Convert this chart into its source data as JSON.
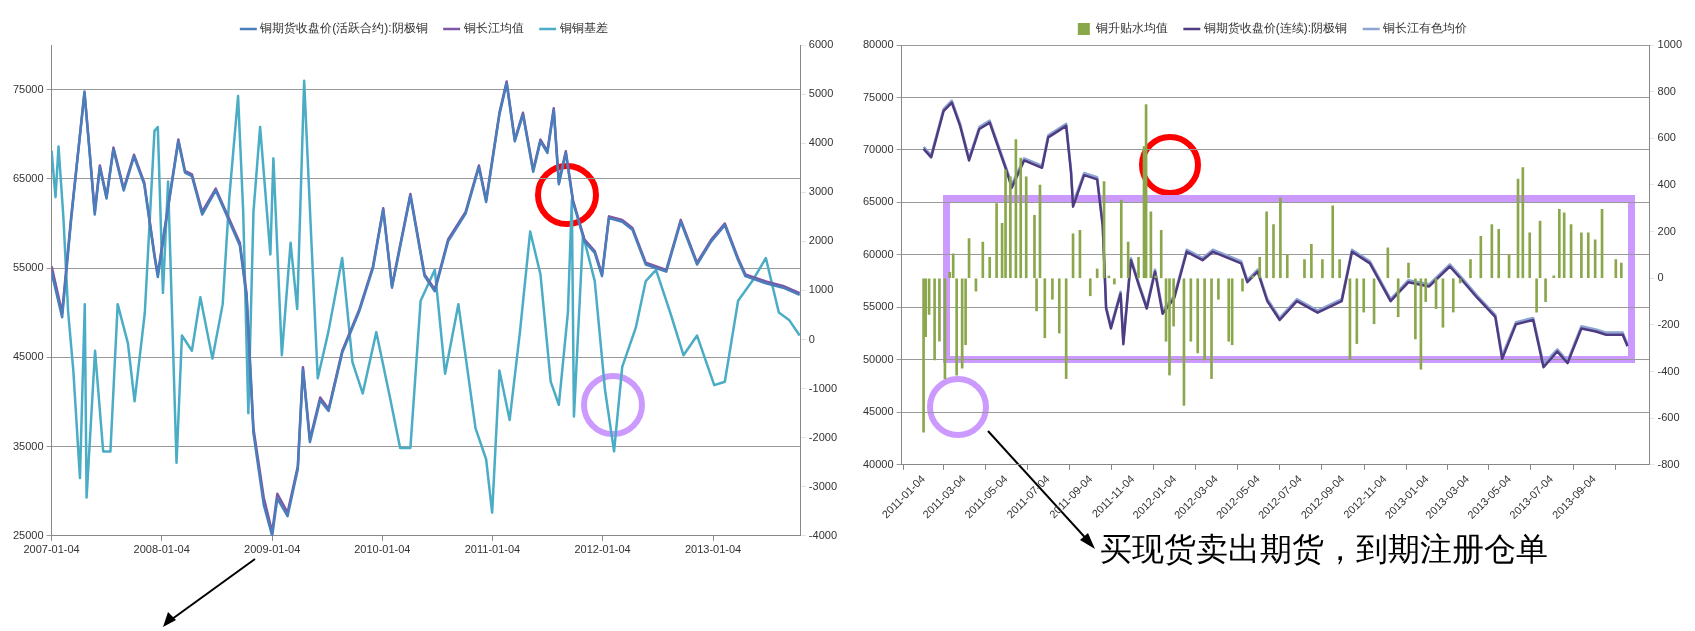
{
  "chart_data": [
    {
      "type": "line",
      "legend": "top",
      "grid": "y",
      "xlim": [
        "2007-01-04",
        "2013-10-22"
      ],
      "xticks": [
        "2007-01-04",
        "2008-01-04",
        "2009-01-04",
        "2010-01-04",
        "2011-01-04",
        "2012-01-04",
        "2013-01-04"
      ],
      "ylim": [
        25000,
        80000
      ],
      "yticks": [
        25000,
        35000,
        45000,
        55000,
        65000,
        75000
      ],
      "y2lim": [
        -4000,
        6000
      ],
      "y2ticks": [
        -4000,
        -3000,
        -2000,
        -1000,
        0,
        1000,
        2000,
        3000,
        4000,
        5000,
        6000
      ],
      "series": [
        {
          "name": "铜期货收盘价(活跃合约):阴极铜",
          "color": "#4a7ebb",
          "x": [
            "2007-01-04",
            "2007-02-08",
            "2007-03-10",
            "2007-04-23",
            "2007-05-10",
            "2007-05-27",
            "2007-06-13",
            "2007-07-05",
            "2007-07-28",
            "2007-08-31",
            "2007-10-04",
            "2007-11-07",
            "2007-12-11",
            "2007-12-22",
            "2008-01-14",
            "2008-02-28",
            "2008-03-21",
            "2008-04-13",
            "2008-05-17",
            "2008-07-01",
            "2008-08-04",
            "2008-09-19",
            "2008-10-11",
            "2008-11-03",
            "2008-12-07",
            "2009-01-04",
            "2009-01-21",
            "2009-02-24",
            "2009-03-30",
            "2009-04-16",
            "2009-05-09",
            "2009-06-12",
            "2009-07-10",
            "2009-08-24",
            "2009-10-20",
            "2009-12-04",
            "2010-01-07",
            "2010-02-05",
            "2010-04-07",
            "2010-05-24",
            "2010-06-27",
            "2010-08-10",
            "2010-10-07",
            "2010-11-20",
            "2010-12-14",
            "2011-01-27",
            "2011-02-20",
            "2011-03-19",
            "2011-04-15",
            "2011-05-19",
            "2011-06-12",
            "2011-07-05",
            "2011-07-26",
            "2011-08-12",
            "2011-09-04",
            "2011-09-28",
            "2011-11-05",
            "2011-12-09",
            "2012-01-02",
            "2012-01-25",
            "2012-03-09",
            "2012-04-12",
            "2012-05-26",
            "2012-08-02",
            "2012-09-19",
            "2012-11-12",
            "2012-12-29",
            "2013-02-12",
            "2013-03-28",
            "2013-04-21",
            "2013-06-28",
            "2013-08-24",
            "2013-10-18"
          ],
          "values": [
            54500,
            49500,
            60500,
            74800,
            68000,
            61000,
            66300,
            62800,
            68300,
            63700,
            67500,
            64400,
            56300,
            54000,
            59300,
            69200,
            65700,
            65300,
            61000,
            63700,
            61100,
            57500,
            51800,
            36500,
            28500,
            25000,
            29200,
            27200,
            32500,
            43600,
            35500,
            40200,
            39000,
            45500,
            50200,
            55000,
            61500,
            52800,
            63100,
            54100,
            52400,
            58000,
            61100,
            66300,
            62400,
            72200,
            75700,
            69200,
            72200,
            65800,
            69200,
            67900,
            72700,
            64400,
            67900,
            62400,
            58000,
            56700,
            54100,
            60600,
            60200,
            59300,
            55400,
            54600,
            60200,
            55400,
            58000,
            59800,
            55900,
            54100,
            53300,
            52800,
            52000
          ]
        },
        {
          "name": "铜长江均值",
          "color": "#7e57a5",
          "x": [
            "2007-01-04",
            "2007-02-08",
            "2007-03-10",
            "2007-04-23",
            "2007-05-10",
            "2007-05-27",
            "2007-06-13",
            "2007-07-05",
            "2007-07-28",
            "2007-08-31",
            "2007-10-04",
            "2007-11-07",
            "2007-12-11",
            "2007-12-22",
            "2008-01-14",
            "2008-02-28",
            "2008-03-21",
            "2008-04-13",
            "2008-05-17",
            "2008-07-01",
            "2008-08-04",
            "2008-09-19",
            "2008-10-11",
            "2008-11-03",
            "2008-12-07",
            "2009-01-04",
            "2009-01-21",
            "2009-02-24",
            "2009-03-30",
            "2009-04-16",
            "2009-05-09",
            "2009-06-12",
            "2009-07-10",
            "2009-08-24",
            "2009-10-20",
            "2009-12-04",
            "2010-01-07",
            "2010-02-05",
            "2010-04-07",
            "2010-05-24",
            "2010-06-27",
            "2010-08-10",
            "2010-10-07",
            "2010-11-20",
            "2010-12-14",
            "2011-01-27",
            "2011-02-20",
            "2011-03-19",
            "2011-04-15",
            "2011-05-19",
            "2011-06-12",
            "2011-07-05",
            "2011-07-26",
            "2011-08-12",
            "2011-09-04",
            "2011-09-28",
            "2011-11-05",
            "2011-12-09",
            "2012-01-02",
            "2012-01-25",
            "2012-03-09",
            "2012-04-12",
            "2012-05-26",
            "2012-08-02",
            "2012-09-19",
            "2012-11-12",
            "2012-12-29",
            "2013-02-12",
            "2013-03-28",
            "2013-04-21",
            "2013-06-28",
            "2013-08-24",
            "2013-10-18"
          ],
          "values": [
            55200,
            50000,
            60800,
            74600,
            68100,
            61300,
            66500,
            63000,
            68500,
            63900,
            67700,
            64600,
            56500,
            54300,
            59500,
            69400,
            65900,
            65500,
            61300,
            63900,
            61300,
            57800,
            52200,
            37000,
            29300,
            25400,
            29700,
            27600,
            32800,
            43900,
            35800,
            40500,
            39200,
            45700,
            50400,
            55200,
            61700,
            53000,
            63300,
            54300,
            52600,
            58200,
            61300,
            66500,
            62600,
            72400,
            75900,
            69400,
            72400,
            66000,
            69400,
            68100,
            72900,
            64600,
            68100,
            62600,
            58200,
            56900,
            54300,
            60800,
            60400,
            59500,
            55600,
            54800,
            60400,
            55600,
            58200,
            60000,
            56100,
            54300,
            53500,
            53000,
            52200
          ]
        },
        {
          "name": "铜铜基差",
          "color": "#4bacc6",
          "axis": "y2",
          "x": [
            "2007-01-04",
            "2007-01-17",
            "2007-01-27",
            "2007-02-12",
            "2007-02-28",
            "2007-03-17",
            "2007-04-08",
            "2007-04-24",
            "2007-04-30",
            "2007-05-28",
            "2007-06-24",
            "2007-07-18",
            "2007-08-11",
            "2007-09-14",
            "2007-10-06",
            "2007-11-09",
            "2007-12-11",
            "2007-12-22",
            "2008-01-08",
            "2008-01-25",
            "2008-02-22",
            "2008-03-11",
            "2008-04-13",
            "2008-05-11",
            "2008-06-20",
            "2008-07-24",
            "2008-08-15",
            "2008-09-13",
            "2008-09-30",
            "2008-10-17",
            "2008-11-03",
            "2008-11-25",
            "2008-12-29",
            "2009-01-08",
            "2009-02-05",
            "2009-03-06",
            "2009-03-28",
            "2009-04-20",
            "2009-05-13",
            "2009-06-04",
            "2009-07-09",
            "2009-08-24",
            "2009-09-27",
            "2009-10-31",
            "2009-12-15",
            "2010-01-29",
            "2010-03-04",
            "2010-04-07",
            "2010-05-11",
            "2010-06-27",
            "2010-07-31",
            "2010-09-13",
            "2010-11-09",
            "2010-12-14",
            "2011-01-03",
            "2011-01-27",
            "2011-03-02",
            "2011-04-05",
            "2011-05-09",
            "2011-06-12",
            "2011-07-16",
            "2011-08-12",
            "2011-09-11",
            "2011-09-24",
            "2011-10-01",
            "2011-10-31",
            "2011-12-09",
            "2012-01-12",
            "2012-02-11",
            "2012-03-09",
            "2012-04-23",
            "2012-05-26",
            "2012-06-29",
            "2012-08-15",
            "2012-09-28",
            "2012-11-12",
            "2013-01-08",
            "2013-02-12",
            "2013-03-28",
            "2013-05-14",
            "2013-06-28",
            "2013-08-10",
            "2013-09-14",
            "2013-10-18"
          ],
          "values": [
            3850,
            2900,
            3930,
            2500,
            550,
            -630,
            -2820,
            720,
            -3220,
            -230,
            -2280,
            -2280,
            720,
            -80,
            -1260,
            550,
            4250,
            4330,
            950,
            3220,
            -2510,
            80,
            -230,
            860,
            -390,
            720,
            2900,
            4960,
            2600,
            -1500,
            2600,
            4330,
            1730,
            3690,
            -320,
            1970,
            620,
            5270,
            2130,
            -790,
            150,
            1660,
            -460,
            -1100,
            150,
            -1170,
            -2210,
            -2210,
            790,
            1420,
            -700,
            720,
            -1810,
            -2440,
            -3530,
            -630,
            -1640,
            150,
            2200,
            1330,
            -860,
            -1330,
            550,
            2840,
            -1570,
            2130,
            1190,
            -1030,
            -2280,
            -560,
            240,
            1190,
            1420,
            550,
            -320,
            80,
            -930,
            -860,
            790,
            1190,
            1660,
            550,
            390,
            80
          ]
        }
      ]
    },
    {
      "type": "line",
      "legend": "top",
      "grid": "y",
      "xlim": [
        "2011-01-04",
        "2013-10-22"
      ],
      "xticks": [
        "2011-01-04",
        "2011-03-04",
        "2011-05-04",
        "2011-07-04",
        "2011-09-04",
        "2011-11-04",
        "2012-01-04",
        "2012-03-04",
        "2012-05-04",
        "2012-07-04",
        "2012-09-04",
        "2012-11-04",
        "2013-01-04",
        "2013-03-04",
        "2013-05-04",
        "2013-07-04",
        "2013-09-04"
      ],
      "ylim": [
        40000,
        80000
      ],
      "yticks": [
        40000,
        45000,
        50000,
        55000,
        60000,
        65000,
        70000,
        75000,
        80000
      ],
      "y2lim": [
        -800,
        1000
      ],
      "y2ticks": [
        -800,
        -600,
        -400,
        -200,
        0,
        200,
        400,
        600,
        800,
        1000
      ],
      "annotations": [
        "买现货卖出期货，到期注册仓单"
      ],
      "series": [
        {
          "name": "铜升贴水均值",
          "type": "bar",
          "color": "#8aa84b",
          "axis": "y2",
          "x": [
            "2011-01-04",
            "2011-01-07",
            "2011-01-12",
            "2011-01-20",
            "2011-01-27",
            "2011-02-04",
            "2011-02-11",
            "2011-02-16",
            "2011-02-21",
            "2011-03-01",
            "2011-03-06",
            "2011-03-11",
            "2011-03-21",
            "2011-03-31",
            "2011-04-10",
            "2011-04-20",
            "2011-04-28",
            "2011-05-03",
            "2011-05-10",
            "2011-05-18",
            "2011-05-25",
            "2011-06-02",
            "2011-06-14",
            "2011-06-17",
            "2011-06-22",
            "2011-06-29",
            "2011-07-10",
            "2011-07-20",
            "2011-07-30",
            "2011-08-09",
            "2011-08-19",
            "2011-09-03",
            "2011-09-13",
            "2011-09-23",
            "2011-09-30",
            "2011-10-08",
            "2011-10-18",
            "2011-10-28",
            "2011-11-12",
            "2011-11-20",
            "2011-11-23",
            "2011-11-30",
            "2011-12-07",
            "2011-12-15",
            "2011-12-22",
            "2011-12-27",
            "2012-01-02",
            "2012-01-17",
            "2012-01-27",
            "2012-02-06",
            "2012-02-16",
            "2012-02-26",
            "2012-03-07",
            "2012-03-22",
            "2012-03-27",
            "2012-04-11",
            "2012-04-26",
            "2012-05-06",
            "2012-05-16",
            "2012-05-26",
            "2012-06-05",
            "2012-06-15",
            "2012-07-10",
            "2012-07-20",
            "2012-08-05",
            "2012-08-20",
            "2012-08-30",
            "2012-09-14",
            "2012-09-24",
            "2012-10-04",
            "2012-10-19",
            "2012-11-08",
            "2012-11-23",
            "2012-12-08",
            "2012-12-18",
            "2012-12-26",
            "2013-01-02",
            "2013-01-17",
            "2013-01-27",
            "2013-02-11",
            "2013-02-21",
            "2013-03-08",
            "2013-03-23",
            "2013-04-08",
            "2013-04-18",
            "2013-05-03",
            "2013-05-16",
            "2013-05-23",
            "2013-06-02",
            "2013-06-12",
            "2013-06-17",
            "2013-06-25",
            "2013-07-07",
            "2013-07-15",
            "2013-07-22",
            "2013-08-01",
            "2013-08-16",
            "2013-08-26",
            "2013-09-05",
            "2013-09-15",
            "2013-10-05",
            "2013-10-13"
          ],
          "values": [
            -660,
            -250,
            -155,
            -350,
            -270,
            -430,
            25,
            105,
            -415,
            -385,
            -285,
            170,
            -55,
            155,
            90,
            320,
            235,
            465,
            435,
            595,
            515,
            435,
            270,
            -140,
            400,
            -255,
            -90,
            -235,
            -430,
            190,
            205,
            -75,
            40,
            415,
            10,
            -25,
            335,
            155,
            90,
            565,
            745,
            285,
            10,
            205,
            -270,
            -415,
            -205,
            -545,
            -270,
            -320,
            -350,
            -430,
            -90,
            -270,
            -285,
            -55,
            10,
            90,
            285,
            230,
            345,
            100,
            80,
            145,
            80,
            310,
            80,
            -345,
            -280,
            -145,
            -195,
            130,
            -165,
            65,
            -260,
            -390,
            -100,
            -130,
            -210,
            -145,
            -20,
            80,
            180,
            230,
            210,
            100,
            425,
            475,
            195,
            -145,
            245,
            -100,
            10,
            295,
            280,
            230,
            195,
            195,
            165,
            295,
            80,
            65
          ]
        },
        {
          "name": "铜期货收盘价(连续):阴极铜",
          "color": "#4f3b82",
          "x": [
            "2011-01-04",
            "2011-01-15",
            "2011-02-02",
            "2011-02-14",
            "2011-02-26",
            "2011-03-11",
            "2011-03-26",
            "2011-04-10",
            "2011-04-19",
            "2011-05-05",
            "2011-05-12",
            "2011-05-30",
            "2011-06-25",
            "2011-07-04",
            "2011-07-30",
            "2011-08-06",
            "2011-08-09",
            "2011-08-25",
            "2011-09-13",
            "2011-09-21",
            "2011-09-26",
            "2011-10-03",
            "2011-10-17",
            "2011-10-21",
            "2011-11-01",
            "2011-11-13",
            "2011-11-24",
            "2011-12-06",
            "2011-12-17",
            "2012-01-03",
            "2012-01-21",
            "2012-02-13",
            "2012-02-28",
            "2012-04-09",
            "2012-04-18",
            "2012-05-03",
            "2012-05-17",
            "2012-06-04",
            "2012-06-29",
            "2012-07-29",
            "2012-09-02",
            "2012-09-17",
            "2012-10-13",
            "2012-11-12",
            "2012-12-08",
            "2013-01-07",
            "2013-02-06",
            "2013-02-21",
            "2013-03-18",
            "2013-04-13",
            "2013-04-23",
            "2013-05-13",
            "2013-06-07",
            "2013-06-22",
            "2013-07-12",
            "2013-07-27",
            "2013-08-16",
            "2013-09-06",
            "2013-09-21",
            "2013-10-15",
            "2013-10-22"
          ],
          "values": [
            70100,
            69300,
            73700,
            74500,
            72300,
            69000,
            72000,
            72600,
            70900,
            67900,
            66400,
            69000,
            68300,
            71200,
            72300,
            67900,
            64600,
            67600,
            67200,
            62800,
            54900,
            53000,
            56300,
            51500,
            59500,
            57000,
            54900,
            58400,
            54400,
            55900,
            60300,
            59500,
            60300,
            59200,
            57400,
            58400,
            55600,
            53800,
            55600,
            54500,
            55600,
            60300,
            59200,
            55600,
            57400,
            57000,
            58900,
            57800,
            55900,
            54100,
            50100,
            53400,
            53800,
            49300,
            50800,
            49700,
            53000,
            52700,
            52400,
            52400,
            51300
          ]
        },
        {
          "name": "铜长江有色均价",
          "color": "#8ea4d2",
          "x": [
            "2011-01-04",
            "2011-01-15",
            "2011-02-02",
            "2011-02-14",
            "2011-02-26",
            "2011-03-11",
            "2011-03-26",
            "2011-04-10",
            "2011-04-19",
            "2011-05-05",
            "2011-05-12",
            "2011-05-30",
            "2011-06-25",
            "2011-07-04",
            "2011-07-30",
            "2011-08-06",
            "2011-08-09",
            "2011-08-25",
            "2011-09-13",
            "2011-09-21",
            "2011-09-26",
            "2011-10-03",
            "2011-10-17",
            "2011-10-21",
            "2011-11-01",
            "2011-11-13",
            "2011-11-24",
            "2011-12-06",
            "2011-12-17",
            "2012-01-03",
            "2012-01-21",
            "2012-02-13",
            "2012-02-28",
            "2012-04-09",
            "2012-04-18",
            "2012-05-03",
            "2012-05-17",
            "2012-06-04",
            "2012-06-29",
            "2012-07-29",
            "2012-09-02",
            "2012-09-17",
            "2012-10-13",
            "2012-11-12",
            "2012-12-08",
            "2013-01-07",
            "2013-02-06",
            "2013-02-21",
            "2013-03-18",
            "2013-04-13",
            "2013-04-23",
            "2013-05-13",
            "2013-06-07",
            "2013-06-22",
            "2013-07-12",
            "2013-07-27",
            "2013-08-16",
            "2013-09-06",
            "2013-09-21",
            "2013-10-15",
            "2013-10-22"
          ],
          "values": [
            70300,
            69500,
            73900,
            74700,
            72500,
            69200,
            72200,
            72800,
            71100,
            68100,
            66700,
            69200,
            68500,
            71400,
            72500,
            68100,
            64900,
            67800,
            67400,
            63000,
            55100,
            53200,
            56500,
            51800,
            59700,
            57200,
            55100,
            58600,
            54700,
            56100,
            60500,
            59700,
            60500,
            59400,
            57600,
            58600,
            55800,
            54000,
            55800,
            54700,
            55800,
            60500,
            59400,
            55800,
            57600,
            57200,
            59100,
            58000,
            56100,
            54300,
            50400,
            53600,
            54000,
            49600,
            51000,
            49900,
            53200,
            52900,
            52600,
            52600,
            51500
          ]
        }
      ]
    }
  ]
}
